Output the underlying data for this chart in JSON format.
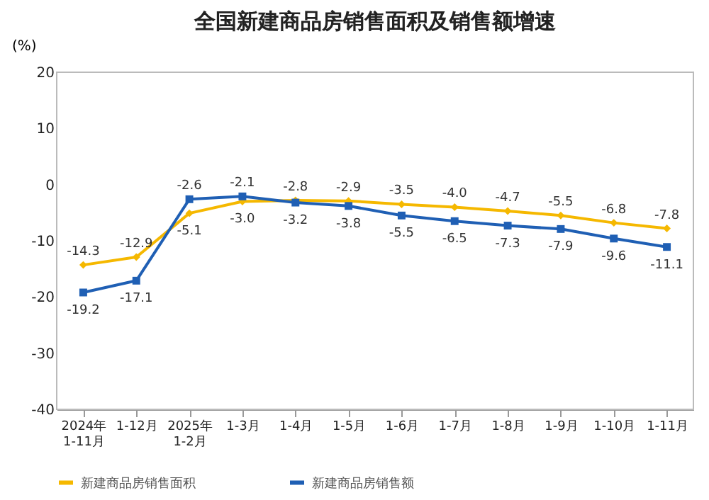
{
  "chart_data": {
    "type": "line",
    "title": "全国新建商品房销售面积及销售额增速",
    "ylabel": "(%)",
    "categories": [
      "2024年\n1-11月",
      "1-12月",
      "2025年\n1-2月",
      "1-3月",
      "1-4月",
      "1-5月",
      "1-6月",
      "1-7月",
      "1-8月",
      "1-9月",
      "1-10月",
      "1-11月"
    ],
    "series": [
      {
        "name": "新建商品房销售面积",
        "color": "#f5b800",
        "marker": "diamond",
        "values": [
          -14.3,
          -12.9,
          -5.1,
          -3.0,
          -2.8,
          -2.9,
          -3.5,
          -4.0,
          -4.7,
          -5.5,
          -6.8,
          -7.8
        ],
        "value_labels": [
          "-14.3",
          "-12.9",
          "-5.1",
          "-3.0",
          "-2.8",
          "-2.9",
          "-3.5",
          "-4.0",
          "-4.7",
          "-5.5",
          "-6.8",
          "-7.8"
        ]
      },
      {
        "name": "新建商品房销售额",
        "color": "#1f5fb4",
        "marker": "square",
        "values": [
          -19.2,
          -17.1,
          -2.6,
          -2.1,
          -3.2,
          -3.8,
          -5.5,
          -6.5,
          -7.3,
          -7.9,
          -9.6,
          -11.1
        ],
        "value_labels": [
          "-19.2",
          "-17.1",
          "-2.6",
          "-2.1",
          "-3.2",
          "-3.8",
          "-5.5",
          "-6.5",
          "-7.3",
          "-7.9",
          "-9.6",
          "-11.1"
        ]
      }
    ],
    "ylim": [
      -40,
      20
    ],
    "yticks": [
      -40,
      -30,
      -20,
      -10,
      0,
      10,
      20
    ],
    "grid": false,
    "legend": "bottom",
    "line_style": "solid"
  }
}
